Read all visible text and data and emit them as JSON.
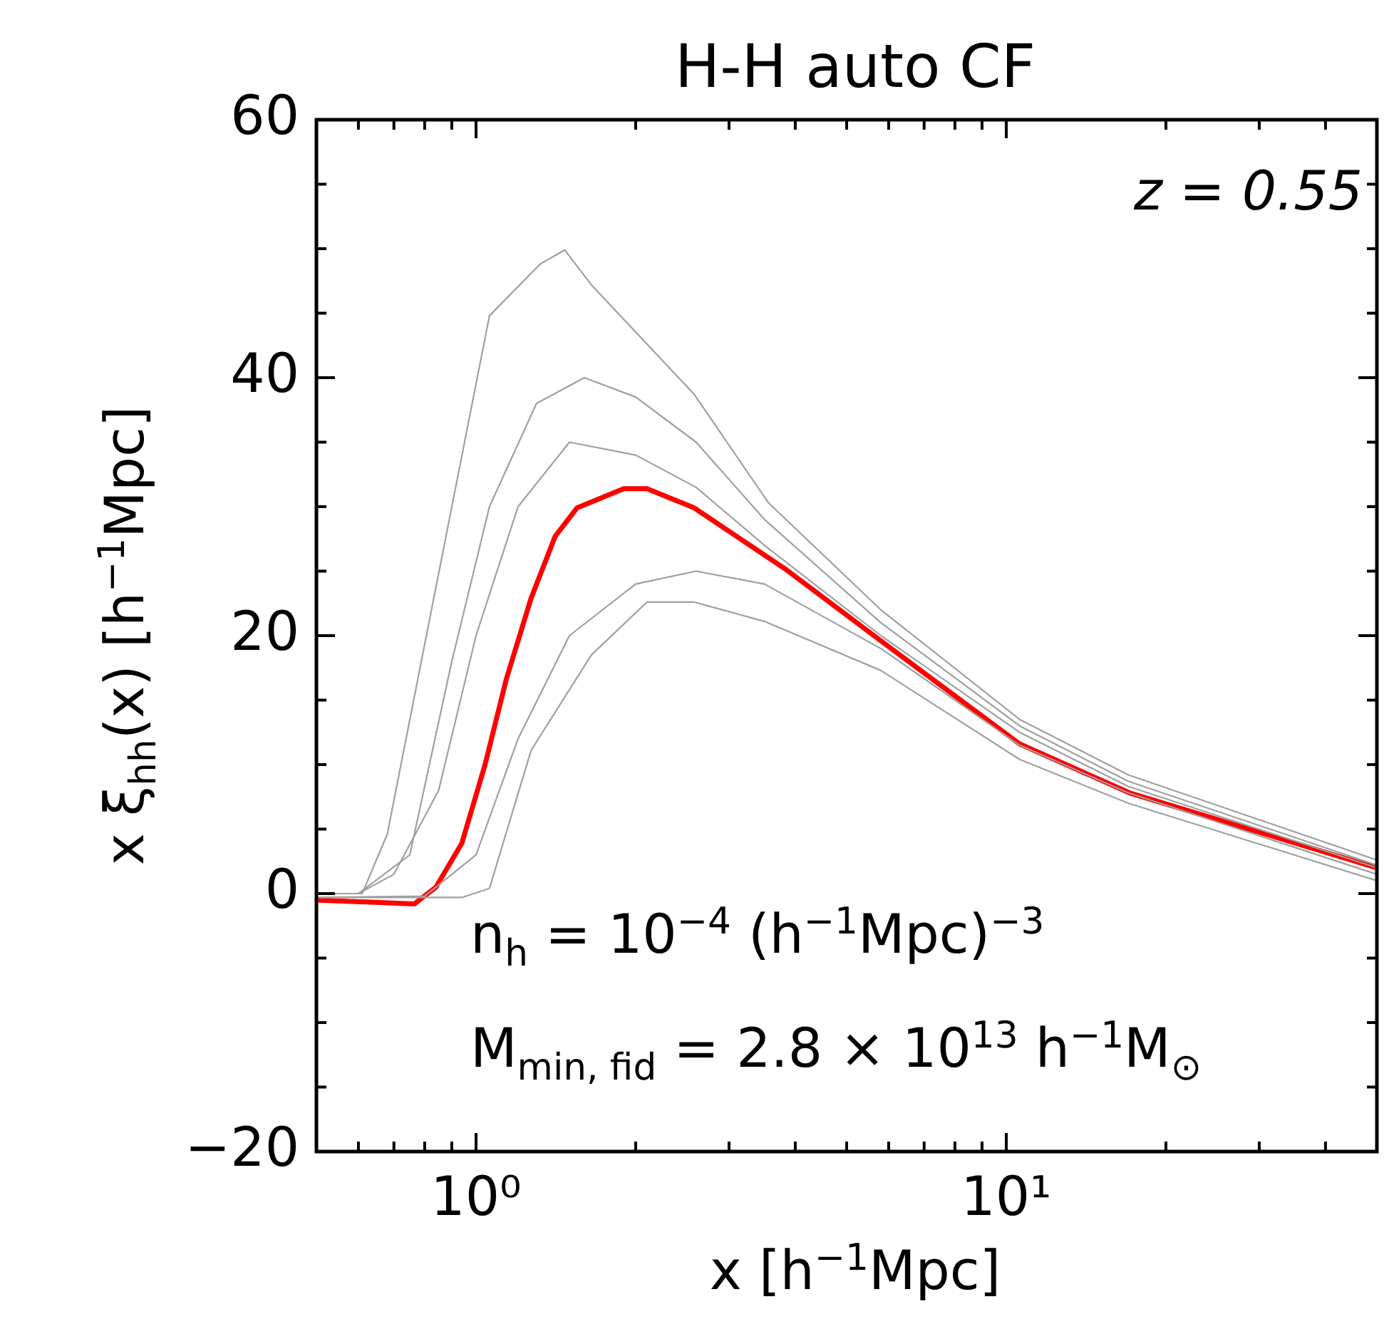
{
  "chart_data": {
    "type": "line",
    "title": "H-H auto CF",
    "xlabel": "x [h$^{−1}$Mpc]",
    "ylabel": "x ξ$_{hh}$(x) [h$^{−1}$Mpc]",
    "annotations": [
      "z = 0.55",
      "n$_{h}$ = 10$^{−4}$ (h$^{−1}$Mpc)$^{−3}$",
      "M$_{min, fid}$ = 2.8 × 10$^{13}$ h$^{−1}$M$_{⊙}$"
    ],
    "log": "x",
    "grid": false,
    "legend": false,
    "marker": "none",
    "line_style": "solid",
    "xlim": [
      0.5,
      50
    ],
    "ylim": [
      -20,
      60
    ],
    "xticks": [
      {
        "value": 0.5,
        "label": null
      },
      {
        "value": 0.6,
        "label": null
      },
      {
        "value": 0.7,
        "label": null
      },
      {
        "value": 0.8,
        "label": null
      },
      {
        "value": 0.9,
        "label": null
      },
      {
        "value": 1,
        "label": "10⁰"
      },
      {
        "value": 2,
        "label": null
      },
      {
        "value": 3,
        "label": null
      },
      {
        "value": 4,
        "label": null
      },
      {
        "value": 5,
        "label": null
      },
      {
        "value": 6,
        "label": null
      },
      {
        "value": 7,
        "label": null
      },
      {
        "value": 8,
        "label": null
      },
      {
        "value": 9,
        "label": null
      },
      {
        "value": 10,
        "label": "10¹"
      },
      {
        "value": 20,
        "label": null
      },
      {
        "value": 30,
        "label": null
      },
      {
        "value": 40,
        "label": null
      },
      {
        "value": 50,
        "label": null
      }
    ],
    "yticks": [
      {
        "value": -20,
        "label": "−20"
      },
      {
        "value": -15,
        "label": null
      },
      {
        "value": -10,
        "label": null
      },
      {
        "value": -5,
        "label": null
      },
      0,
      {
        "value": 5,
        "label": null
      },
      {
        "value": 10,
        "label": null
      },
      {
        "value": 15,
        "label": null
      },
      20,
      {
        "value": 25,
        "label": null
      },
      {
        "value": 30,
        "label": null
      },
      {
        "value": 35,
        "label": null
      },
      40,
      {
        "value": 45,
        "label": null
      },
      {
        "value": 50,
        "label": null
      },
      {
        "value": 55,
        "label": null
      },
      60
    ],
    "series": [
      {
        "color": "#a0a0a0",
        "x": [
          0.5,
          0.61,
          0.68,
          1.06,
          1.32,
          1.47,
          1.65,
          2.58,
          3.56,
          5.8,
          10.6,
          17,
          50
        ],
        "values": [
          0,
          0,
          4.6,
          44.8,
          48.8,
          49.9,
          47.2,
          38.7,
          30.3,
          22,
          13.5,
          9.2,
          2.6
        ]
      },
      {
        "color": "#a0a0a0",
        "x": [
          0.5,
          0.6,
          0.75,
          0.9,
          1.06,
          1.3,
          1.6,
          2,
          2.6,
          3.5,
          5.8,
          10.6,
          17,
          50
        ],
        "values": [
          0,
          0,
          3,
          18,
          30,
          38,
          40,
          38.5,
          35,
          29,
          21,
          13,
          8.7,
          2.2
        ]
      },
      {
        "color": "#a0a0a0",
        "x": [
          0.5,
          0.6,
          0.7,
          0.85,
          1,
          1.2,
          1.5,
          2,
          2.6,
          3.5,
          5.8,
          10.6,
          17,
          50
        ],
        "values": [
          0,
          0,
          1.5,
          8,
          20,
          30,
          35,
          34,
          31.5,
          27,
          20,
          12.5,
          8.3,
          2
        ]
      },
      {
        "color": "#a0a0a0",
        "x": [
          0.5,
          0.8,
          1,
          1.2,
          1.5,
          2,
          2.6,
          3.5,
          5.8,
          10.6,
          17,
          50
        ],
        "values": [
          -0.3,
          -0.2,
          3,
          12,
          20,
          24,
          25,
          24,
          19,
          11.5,
          7.8,
          1.5
        ]
      },
      {
        "color": "#a0a0a0",
        "x": [
          0.5,
          0.94,
          1.06,
          1.27,
          1.65,
          2.1,
          2.58,
          3.5,
          5.8,
          10.6,
          17,
          50
        ],
        "values": [
          -0.3,
          -0.3,
          0.4,
          11.1,
          18.5,
          22.6,
          22.6,
          21.1,
          17.3,
          10.4,
          7,
          1
        ]
      },
      {
        "color": "#ff0000",
        "x": [
          0.5,
          0.765,
          0.84,
          0.94,
          1.04,
          1.14,
          1.27,
          1.41,
          1.55,
          1.9,
          2.1,
          2.58,
          3.85,
          5.8,
          10.6,
          17.1,
          50
        ],
        "values": [
          -0.5,
          -0.8,
          0.5,
          3.9,
          10,
          16.6,
          22.9,
          27.7,
          29.9,
          31.4,
          31.4,
          29.9,
          25.1,
          19.6,
          11.6,
          7.8,
          2
        ]
      }
    ]
  }
}
